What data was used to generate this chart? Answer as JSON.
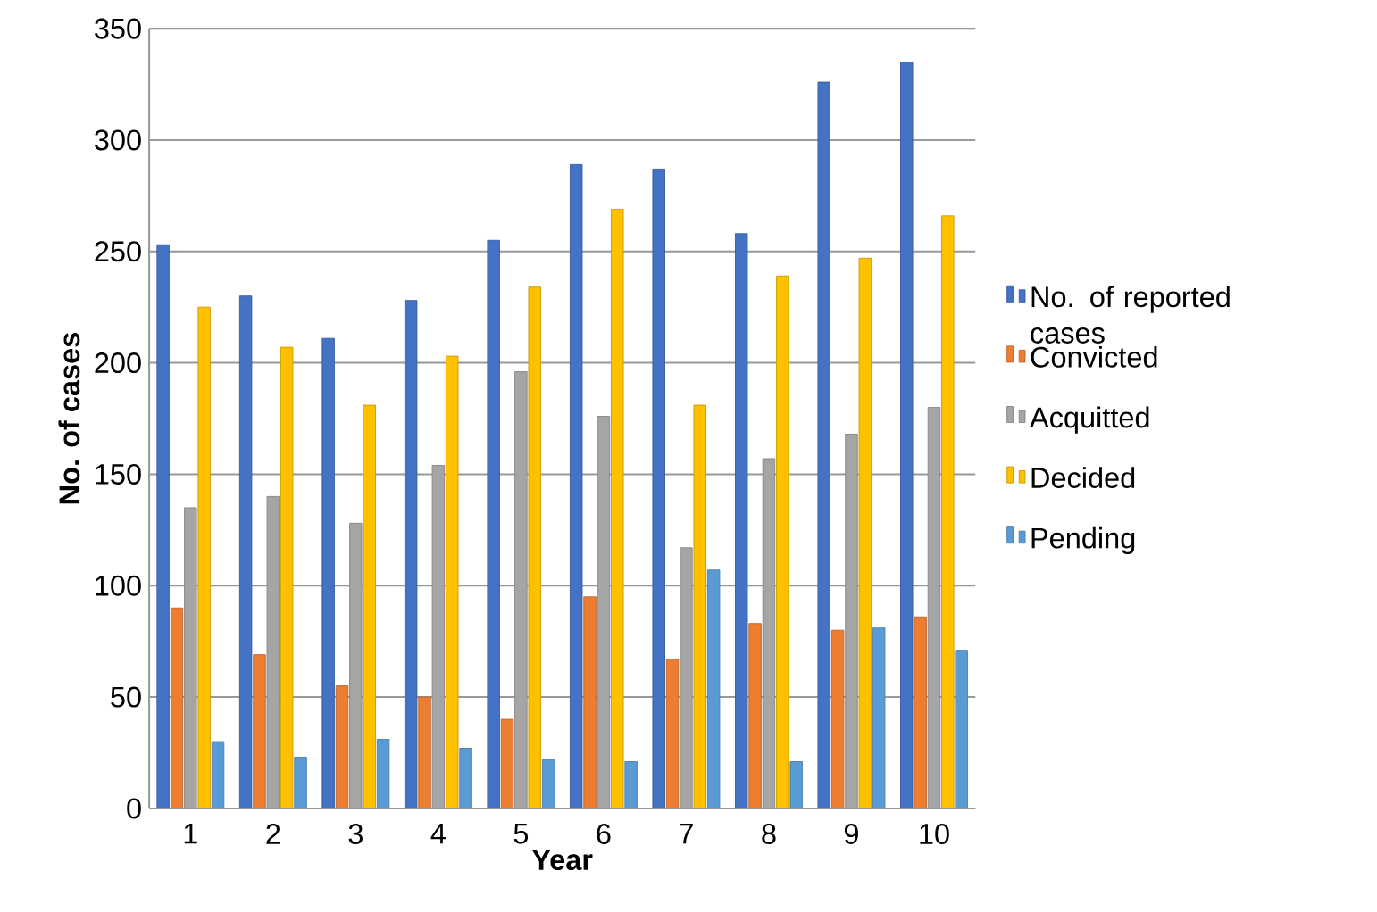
{
  "chart_data": {
    "type": "bar",
    "xlabel": "Year",
    "ylabel": "No. of cases",
    "categories": [
      "1",
      "2",
      "3",
      "4",
      "5",
      "6",
      "7",
      "8",
      "9",
      "10"
    ],
    "series": [
      {
        "name": "No. of reported cases",
        "color": "#4472c4",
        "values": [
          253,
          230,
          211,
          228,
          255,
          289,
          287,
          258,
          326,
          335
        ]
      },
      {
        "name": "Convicted",
        "color": "#ed7d31",
        "values": [
          90,
          69,
          55,
          50,
          40,
          95,
          67,
          83,
          80,
          86
        ]
      },
      {
        "name": "Acquitted",
        "color": "#a5a5a5",
        "values": [
          135,
          140,
          128,
          154,
          196,
          176,
          117,
          157,
          168,
          180
        ]
      },
      {
        "name": "Decided",
        "color": "#ffc000",
        "values": [
          225,
          207,
          181,
          203,
          234,
          269,
          181,
          239,
          247,
          266
        ]
      },
      {
        "name": "Pending",
        "color": "#5b9bd5",
        "values": [
          30,
          23,
          31,
          27,
          22,
          21,
          107,
          21,
          81,
          71
        ]
      }
    ],
    "ylim": [
      0,
      350
    ],
    "yticks": [
      0,
      50,
      100,
      150,
      200,
      250,
      300,
      350
    ],
    "grid": "y",
    "legend": "right"
  }
}
